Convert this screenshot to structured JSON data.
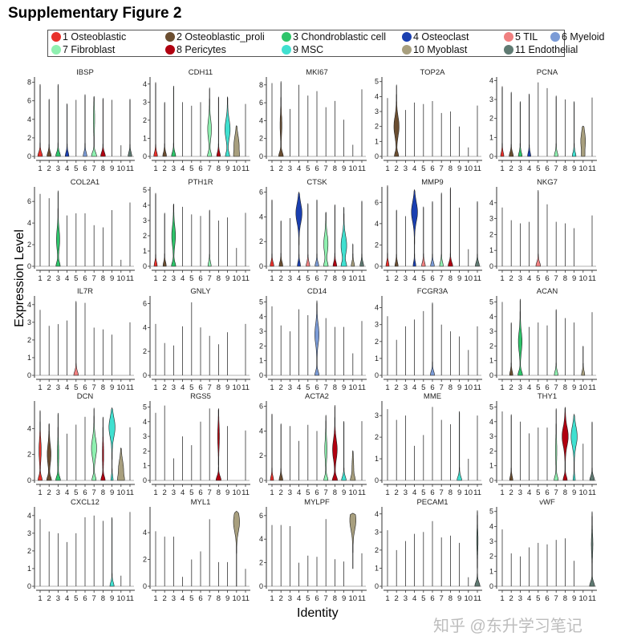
{
  "title": "Supplementary Figure 2",
  "y_axis_label": "Expression Level",
  "x_axis_label": "Identity",
  "watermark": "知乎 @东升学习笔记",
  "legend": [
    {
      "label": "1 Osteoblastic",
      "color": "#E8302A"
    },
    {
      "label": "2 Osteoblastic_proli",
      "color": "#6B4E31"
    },
    {
      "label": "3 Chondroblastic cell",
      "color": "#2EC46A"
    },
    {
      "label": "4 Osteoclast",
      "color": "#1A3FB0"
    },
    {
      "label": "5 TIL",
      "color": "#F08080"
    },
    {
      "label": "6 Myeloid",
      "color": "#7B9BD6"
    },
    {
      "label": "7 Fibroblast",
      "color": "#8FF0B0"
    },
    {
      "label": "8 Pericytes",
      "color": "#B00010"
    },
    {
      "label": "9 MSC",
      "color": "#40E0D0"
    },
    {
      "label": "10 Myoblast",
      "color": "#A89F7E"
    },
    {
      "label": "11 Endothelial",
      "color": "#5F7A72"
    }
  ],
  "chart_data": {
    "type": "violin",
    "categories": [
      "1",
      "2",
      "3",
      "4",
      "5",
      "6",
      "7",
      "8",
      "9",
      "10",
      "11"
    ],
    "note": "max = maximum expression per cluster; violins: cluster -> [base_width, bulge_center, bulge_width, min]",
    "panels": [
      {
        "gene": "IBSP",
        "ticks": [
          0,
          2,
          4,
          6,
          8
        ],
        "ymax": 8.4,
        "max": [
          7.8,
          6.2,
          7.8,
          5.7,
          6.1,
          6.7,
          6.5,
          6.3,
          6.1,
          1.2,
          6.2
        ],
        "violins": {
          "1": [
            0.45,
            0,
            0
          ],
          "2": [
            0.4,
            0,
            0
          ],
          "3": [
            0.45,
            0,
            0
          ],
          "4": [
            0.35,
            0,
            0
          ],
          "6": [
            0.35,
            0,
            0
          ],
          "7": [
            0.5,
            4,
            0.1
          ],
          "8": [
            0.45,
            0,
            0
          ],
          "11": [
            0.35,
            0,
            0
          ]
        }
      },
      {
        "gene": "CDH11",
        "ticks": [
          0,
          1,
          2,
          3,
          4
        ],
        "ymax": 4.3,
        "max": [
          4.1,
          3.0,
          3.9,
          3.0,
          2.8,
          3.0,
          3.8,
          3.3,
          3.3,
          1.7,
          2.9
        ],
        "violins": {
          "1": [
            0.35,
            0,
            0
          ],
          "2": [
            0.35,
            0,
            0
          ],
          "3": [
            0.4,
            0,
            0
          ],
          "7": [
            0.4,
            1.5,
            0.35
          ],
          "8": [
            0.35,
            0,
            0
          ],
          "9": [
            0.4,
            1.5,
            0.5
          ],
          "10": [
            0.3,
            0.6,
            0.5
          ]
        }
      },
      {
        "gene": "MKI67",
        "ticks": [
          0,
          2,
          4,
          6,
          8
        ],
        "ymax": 8.7,
        "max": [
          8.2,
          8.4,
          5.3,
          8.0,
          6.8,
          7.3,
          5.5,
          6.2,
          4.1,
          1.3,
          7.5
        ],
        "violins": {
          "2": [
            0.45,
            3.5,
            0.15
          ]
        }
      },
      {
        "gene": "TOP2A",
        "ticks": [
          0,
          1,
          2,
          3,
          4,
          5
        ],
        "ymax": 5.2,
        "max": [
          3.9,
          4.8,
          3.1,
          3.6,
          3.5,
          3.7,
          2.9,
          3.0,
          2.0,
          0.6,
          3.4
        ],
        "violins": {
          "2": [
            0.4,
            2.0,
            0.5
          ]
        }
      },
      {
        "gene": "PCNA",
        "ticks": [
          0,
          1,
          2,
          3,
          4
        ],
        "ymax": 4.1,
        "max": [
          3.7,
          3.4,
          2.9,
          3.3,
          3.9,
          3.6,
          3.2,
          3.0,
          2.9,
          1.6,
          3.1
        ],
        "violins": {
          "1": [
            0.3,
            0,
            0
          ],
          "2": [
            0.4,
            0,
            0
          ],
          "3": [
            0.35,
            0,
            0
          ],
          "4": [
            0.3,
            0,
            0
          ],
          "7": [
            0.35,
            0,
            0
          ],
          "9": [
            0.35,
            0,
            0
          ],
          "10": [
            0.2,
            0.8,
            0.45
          ]
        }
      },
      {
        "gene": "COL2A1",
        "ticks": [
          0,
          2,
          4,
          6
        ],
        "ymax": 7.2,
        "max": [
          6.7,
          6.3,
          7.0,
          4.7,
          4.9,
          4.9,
          3.8,
          3.6,
          5.2,
          0.6,
          5.9
        ],
        "violins": {
          "3": [
            0.4,
            2.5,
            0.3
          ]
        }
      },
      {
        "gene": "PTH1R",
        "ticks": [
          0,
          1,
          2,
          3,
          4,
          5
        ],
        "ymax": 5.1,
        "max": [
          4.8,
          3.5,
          4.1,
          3.9,
          3.4,
          3.3,
          3.7,
          3.0,
          3.2,
          1.2,
          3.5
        ],
        "violins": {
          "1": [
            0.3,
            0,
            0
          ],
          "2": [
            0.3,
            0,
            0
          ],
          "3": [
            0.4,
            2.0,
            0.35
          ],
          "7": [
            0.3,
            0,
            0
          ]
        }
      },
      {
        "gene": "CTSK",
        "ticks": [
          0,
          2,
          4,
          6
        ],
        "ymax": 6.3,
        "max": [
          5.4,
          3.7,
          3.9,
          6.0,
          5.1,
          5.4,
          4.4,
          5.0,
          4.8,
          1.8,
          5.3
        ],
        "violins": {
          "1": [
            0.35,
            0,
            0
          ],
          "2": [
            0.35,
            0,
            0
          ],
          "4": [
            0.3,
            4.3,
            0.6
          ],
          "5": [
            0.35,
            0,
            0
          ],
          "6": [
            0.35,
            0,
            0
          ],
          "7": [
            0.4,
            1.8,
            0.4
          ],
          "8": [
            0.35,
            0,
            0
          ],
          "9": [
            0.5,
            1.7,
            0.55
          ],
          "10": [
            0.3,
            0,
            0
          ],
          "11": [
            0.35,
            0,
            0
          ]
        }
      },
      {
        "gene": "MMP9",
        "ticks": [
          0,
          2,
          4,
          6
        ],
        "ymax": 7.3,
        "max": [
          7.6,
          5.3,
          4.7,
          7.2,
          5.6,
          6.1,
          6.9,
          7.4,
          5.5,
          1.6,
          6.1
        ],
        "violins": {
          "1": [
            0.3,
            0,
            0
          ],
          "2": [
            0.3,
            0,
            0
          ],
          "4": [
            0.25,
            5.1,
            0.6
          ],
          "5": [
            0.35,
            0,
            0
          ],
          "6": [
            0.35,
            0,
            0
          ],
          "7": [
            0.35,
            0,
            0
          ],
          "8": [
            0.45,
            0,
            0
          ],
          "11": [
            0.4,
            0,
            0
          ]
        }
      },
      {
        "gene": "NKG7",
        "ticks": [
          0,
          1,
          2,
          3,
          4
        ],
        "ymax": 4.9,
        "max": [
          3.7,
          2.9,
          2.7,
          2.8,
          4.8,
          3.9,
          2.8,
          2.7,
          2.4,
          0,
          3.2
        ],
        "violins": {
          "5": [
            0.45,
            0,
            0
          ]
        }
      },
      {
        "gene": "IL7R",
        "ticks": [
          0,
          1,
          2,
          3,
          4
        ],
        "ymax": 4.4,
        "max": [
          3.7,
          2.8,
          2.9,
          3.1,
          4.2,
          4.1,
          2.7,
          2.6,
          2.3,
          0,
          3.0
        ],
        "violins": {
          "5": [
            0.45,
            0,
            0
          ]
        }
      },
      {
        "gene": "GNLY",
        "ticks": [
          0,
          2,
          4,
          6
        ],
        "ymax": 6.5,
        "max": [
          4.3,
          2.7,
          2.5,
          4.1,
          6.1,
          4.0,
          3.3,
          2.6,
          3.6,
          0,
          4.3
        ],
        "violins": {}
      },
      {
        "gene": "CD14",
        "ticks": [
          0,
          1,
          2,
          3,
          4,
          5
        ],
        "ymax": 5.3,
        "max": [
          4.7,
          3.4,
          3.0,
          4.5,
          4.1,
          5.1,
          3.9,
          3.3,
          3.3,
          1.5,
          3.7
        ],
        "violins": {
          "6": [
            0.4,
            2.8,
            0.4
          ]
        }
      },
      {
        "gene": "FCGR3A",
        "ticks": [
          0,
          1,
          2,
          3,
          4
        ],
        "ymax": 4.6,
        "max": [
          3.5,
          2.1,
          2.9,
          3.3,
          3.8,
          4.3,
          3.0,
          2.6,
          2.3,
          1.5,
          2.9
        ],
        "violins": {
          "6": [
            0.4,
            0,
            0
          ]
        }
      },
      {
        "gene": "ACAN",
        "ticks": [
          0,
          1,
          2,
          3,
          4,
          5
        ],
        "ymax": 5.3,
        "max": [
          5.0,
          3.6,
          5.2,
          3.3,
          3.6,
          3.4,
          4.5,
          3.9,
          3.6,
          2.0,
          4.3
        ],
        "violins": {
          "2": [
            0.3,
            0,
            0
          ],
          "3": [
            0.45,
            2.3,
            0.35
          ],
          "7": [
            0.35,
            0,
            0
          ],
          "10": [
            0.3,
            0,
            0
          ]
        }
      },
      {
        "gene": "DCN",
        "ticks": [
          0,
          2,
          4
        ],
        "ymax": 6.0,
        "max": [
          5.4,
          4.4,
          5.2,
          3.6,
          4.3,
          4.9,
          5.6,
          4.9,
          5.6,
          2.5,
          4.1
        ],
        "violins": {
          "1": [
            0.4,
            2.3,
            0.2
          ],
          "2": [
            0.45,
            2.0,
            0.35
          ],
          "3": [
            0.45,
            2.0,
            0.1
          ],
          "7": [
            0.4,
            2.5,
            0.5
          ],
          "8": [
            0.4,
            2.0,
            0.1
          ],
          "9": [
            0.2,
            4.1,
            0.6
          ],
          "10": [
            0.4,
            0.8,
            0.5
          ]
        }
      },
      {
        "gene": "RGS5",
        "ticks": [
          0,
          1,
          2,
          3,
          4,
          5
        ],
        "ymax": 5.3,
        "max": [
          4.6,
          5.1,
          1.5,
          3.0,
          2.4,
          4.0,
          4.9,
          4.9,
          3.7,
          0,
          3.4
        ],
        "violins": {
          "8": [
            0.5,
            3.0,
            0.15
          ]
        }
      },
      {
        "gene": "ACTA2",
        "ticks": [
          0,
          2,
          4,
          6
        ],
        "ymax": 6.3,
        "max": [
          5.4,
          4.6,
          4.4,
          3.2,
          4.5,
          4.0,
          5.3,
          6.1,
          4.8,
          2.4,
          4.8
        ],
        "violins": {
          "1": [
            0.3,
            0,
            0
          ],
          "2": [
            0.35,
            0,
            0
          ],
          "7": [
            0.4,
            2.5,
            0.2
          ],
          "8": [
            0.5,
            2.5,
            0.45
          ],
          "9": [
            0.45,
            0,
            0
          ],
          "10": [
            0.4,
            0.9,
            0.15
          ]
        }
      },
      {
        "gene": "MME",
        "ticks": [
          0,
          1,
          2,
          3
        ],
        "ymax": 3.6,
        "max": [
          3.3,
          2.8,
          3.0,
          1.6,
          2.1,
          3.4,
          2.8,
          2.6,
          3.2,
          1.0,
          3.0
        ],
        "violins": {
          "9": [
            0.45,
            0,
            0
          ]
        }
      },
      {
        "gene": "THY1",
        "ticks": [
          0,
          1,
          2,
          3,
          4,
          5
        ],
        "ymax": 5.3,
        "max": [
          4.7,
          4.5,
          4.0,
          3.2,
          3.6,
          3.6,
          4.9,
          5.0,
          4.5,
          2.5,
          4.0
        ],
        "violins": {
          "2": [
            0.3,
            0,
            0
          ],
          "7": [
            0.4,
            2.0,
            0.1
          ],
          "8": [
            0.4,
            3.0,
            0.6
          ],
          "9": [
            0.2,
            3.0,
            0.6
          ],
          "11": [
            0.45,
            0,
            0
          ]
        }
      },
      {
        "gene": "CXCL12",
        "ticks": [
          0,
          1,
          2,
          3,
          4
        ],
        "ymax": 4.4,
        "max": [
          3.8,
          3.1,
          3.0,
          2.5,
          3.0,
          3.9,
          4.0,
          3.7,
          3.9,
          0.6,
          4.2
        ],
        "violins": {
          "9": [
            0.4,
            0,
            0
          ]
        }
      },
      {
        "gene": "MYL1",
        "ticks": [
          0,
          2,
          4
        ],
        "ymax": 5.8,
        "max": [
          4.1,
          3.7,
          3.7,
          0.7,
          2.0,
          2.6,
          5.0,
          1.8,
          1.8,
          5.6,
          1.3
        ],
        "violins": {
          "10": [
            0,
            4.8,
            0.6
          ]
        }
      },
      {
        "gene": "MYLPF",
        "ticks": [
          0,
          2,
          4,
          6
        ],
        "ymax": 6.6,
        "max": [
          5.2,
          5.2,
          5.1,
          2.0,
          2.6,
          2.5,
          5.7,
          2.3,
          2.1,
          6.2,
          2.8
        ],
        "violins": {
          "10": [
            0,
            5.6,
            0.6,
            1.5
          ]
        }
      },
      {
        "gene": "PECAM1",
        "ticks": [
          0,
          1,
          2,
          3,
          4
        ],
        "ymax": 4.3,
        "max": [
          3.1,
          2.0,
          2.5,
          2.9,
          3.0,
          3.6,
          2.7,
          2.8,
          2.4,
          0.5,
          4.2
        ],
        "violins": {
          "11": [
            0.5,
            2.5,
            0.1
          ]
        }
      },
      {
        "gene": "vWF",
        "ticks": [
          0,
          1,
          2,
          3,
          4,
          5
        ],
        "ymax": 5.2,
        "max": [
          3.8,
          2.2,
          2.0,
          2.6,
          2.9,
          2.8,
          3.1,
          3.2,
          1.7,
          0,
          5.0
        ],
        "violins": {
          "11": [
            0.5,
            2.8,
            0.12
          ]
        }
      }
    ]
  }
}
